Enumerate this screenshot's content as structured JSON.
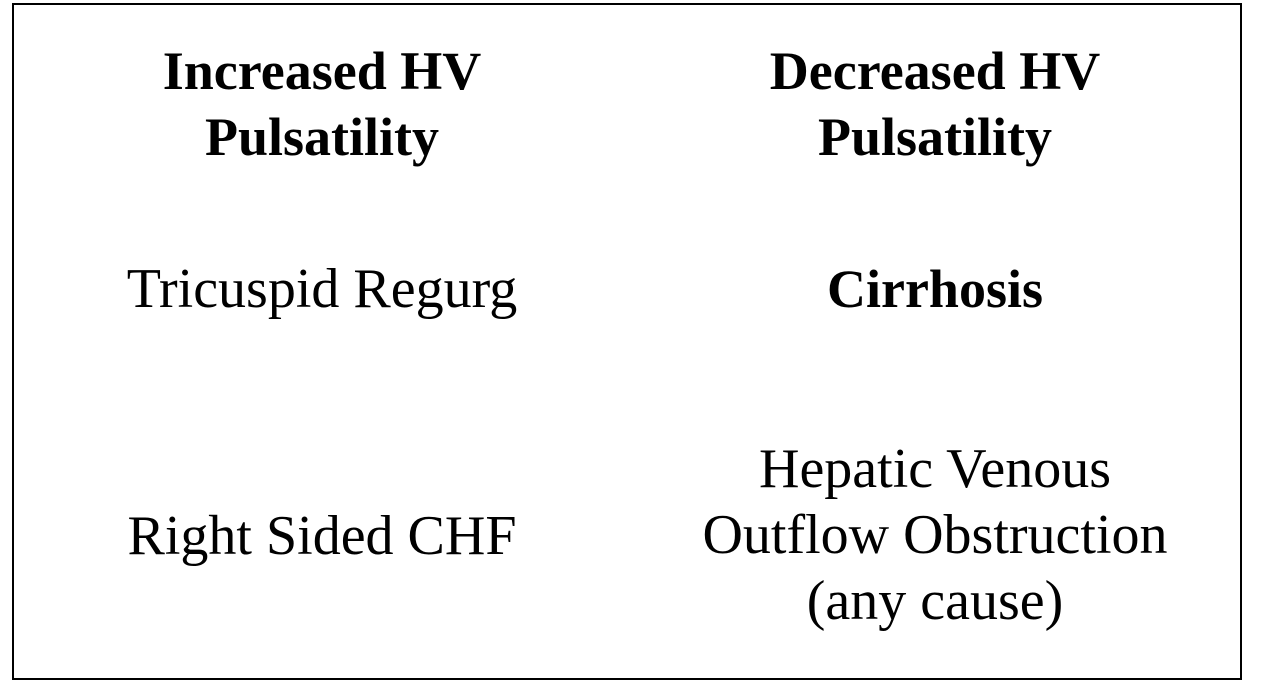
{
  "headers": {
    "increased": [
      "Increased HV",
      "Pulsatility"
    ],
    "decreased": [
      "Decreased HV",
      "Pulsatility"
    ]
  },
  "increased_causes": [
    "Tricuspid Regurg",
    "Right Sided CHF"
  ],
  "decreased_causes": {
    "first": "Cirrhosis",
    "second": [
      "Hepatic Venous",
      "Outflow Obstruction",
      "(any cause)"
    ]
  }
}
